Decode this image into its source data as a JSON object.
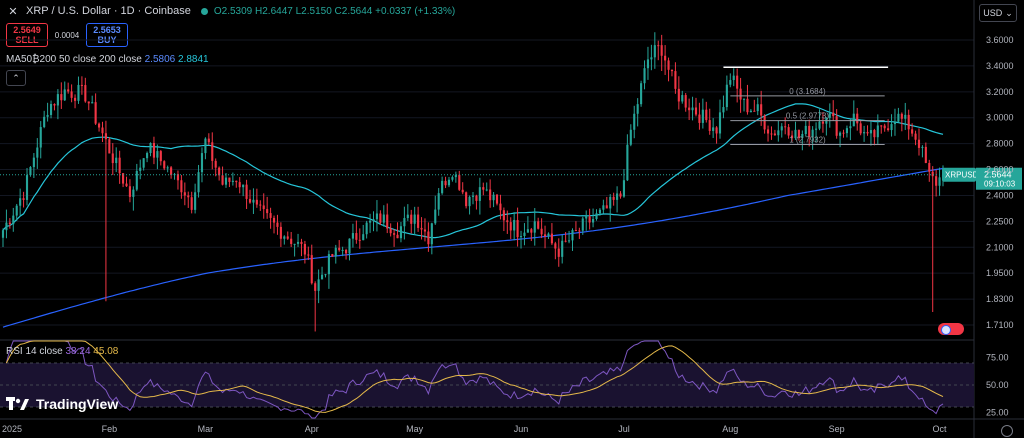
{
  "header": {
    "title": "XRP / U.S. Dollar · 1D · Coinbase",
    "open": "O2.5309",
    "high": "H2.6447",
    "low": "L2.5150",
    "close": "C2.5644",
    "change": "+0.0337 (+1.33%)"
  },
  "trade": {
    "sell_price": "2.5649",
    "sell_label": "SELL",
    "spread": "0.0004",
    "buy_price": "2.5653",
    "buy_label": "BUY"
  },
  "ma_legend": {
    "label": "MA50₿200 50 close 200 close",
    "ma50": "2.5806",
    "ma200": "2.8841"
  },
  "rsi_legend": {
    "label": "RSI 14 close",
    "rsi": "38.24",
    "rsi_ma": "45.08"
  },
  "currency_button": "USD",
  "price_tag": {
    "symbol": "XRPUSD",
    "price": "2.5644",
    "countdown": "09:10:03"
  },
  "fib": {
    "level0": "0 (3.1684)",
    "level05": "0.5 (2.9773)",
    "level1": "1 (2.7932)"
  },
  "brand": "TradingView",
  "colors": {
    "up": "#26a69a",
    "down": "#f23645",
    "ma50": "#2962ff",
    "ma200": "#26c6da",
    "rsi": "#7e57c2",
    "rsi_ma": "#e5b94a"
  },
  "chart_data": {
    "type": "candlestick",
    "price_axis": {
      "ticks": [
        "3.6000",
        "3.4000",
        "3.2000",
        "3.0000",
        "2.8000",
        "2.6000",
        "2.4000",
        "2.2500",
        "2.1000",
        "1.9500",
        "1.8300",
        "1.7100"
      ]
    },
    "rsi_axis": {
      "ticks": [
        "75.00",
        "50.00",
        "25.00"
      ],
      "ylim": [
        20,
        90
      ]
    },
    "time_axis": [
      "2025",
      "Feb",
      "Mar",
      "Apr",
      "May",
      "Jun",
      "Jul",
      "Aug",
      "Sep",
      "Oct"
    ],
    "anchors": [
      {
        "day": 0,
        "price": 2.2
      },
      {
        "day": 6,
        "price": 2.42
      },
      {
        "day": 13,
        "price": 3.08
      },
      {
        "day": 18,
        "price": 3.21
      },
      {
        "day": 24,
        "price": 3.18
      },
      {
        "day": 32,
        "price": 2.69
      },
      {
        "day": 37,
        "price": 2.41
      },
      {
        "day": 42,
        "price": 2.78
      },
      {
        "day": 47,
        "price": 2.64
      },
      {
        "day": 55,
        "price": 2.36
      },
      {
        "day": 59,
        "price": 2.82
      },
      {
        "day": 64,
        "price": 2.49
      },
      {
        "day": 68,
        "price": 2.53
      },
      {
        "day": 74,
        "price": 2.31
      },
      {
        "day": 82,
        "price": 2.18
      },
      {
        "day": 88,
        "price": 2.08
      },
      {
        "day": 91,
        "price": 1.88
      },
      {
        "day": 96,
        "price": 2.05
      },
      {
        "day": 100,
        "price": 2.1
      },
      {
        "day": 105,
        "price": 2.21
      },
      {
        "day": 110,
        "price": 2.27
      },
      {
        "day": 115,
        "price": 2.2
      },
      {
        "day": 120,
        "price": 2.29
      },
      {
        "day": 124,
        "price": 2.16
      },
      {
        "day": 127,
        "price": 2.44
      },
      {
        "day": 131,
        "price": 2.6
      },
      {
        "day": 135,
        "price": 2.38
      },
      {
        "day": 140,
        "price": 2.45
      },
      {
        "day": 145,
        "price": 2.3
      },
      {
        "day": 150,
        "price": 2.2
      },
      {
        "day": 155,
        "price": 2.24
      },
      {
        "day": 158,
        "price": 2.16
      },
      {
        "day": 162,
        "price": 2.08
      },
      {
        "day": 165,
        "price": 2.14
      },
      {
        "day": 170,
        "price": 2.24
      },
      {
        "day": 175,
        "price": 2.3
      },
      {
        "day": 180,
        "price": 2.4
      },
      {
        "day": 183,
        "price": 2.9
      },
      {
        "day": 188,
        "price": 3.45
      },
      {
        "day": 192,
        "price": 3.55
      },
      {
        "day": 196,
        "price": 3.2
      },
      {
        "day": 200,
        "price": 3.1
      },
      {
        "day": 204,
        "price": 3.0
      },
      {
        "day": 208,
        "price": 2.92
      },
      {
        "day": 212,
        "price": 3.32
      },
      {
        "day": 216,
        "price": 3.1
      },
      {
        "day": 220,
        "price": 3.05
      },
      {
        "day": 224,
        "price": 2.88
      },
      {
        "day": 228,
        "price": 2.95
      },
      {
        "day": 232,
        "price": 2.85
      },
      {
        "day": 236,
        "price": 2.92
      },
      {
        "day": 240,
        "price": 3.05
      },
      {
        "day": 244,
        "price": 2.88
      },
      {
        "day": 248,
        "price": 3.0
      },
      {
        "day": 252,
        "price": 2.83
      },
      {
        "day": 256,
        "price": 2.9
      },
      {
        "day": 260,
        "price": 3.02
      },
      {
        "day": 264,
        "price": 2.94
      },
      {
        "day": 267,
        "price": 2.81
      },
      {
        "day": 270,
        "price": 2.55
      },
      {
        "day": 272,
        "price": 2.5
      },
      {
        "day": 274,
        "price": 2.56
      }
    ],
    "annotation_lines": [
      {
        "price": 3.39,
        "from_day": 210,
        "to_day": 258,
        "color": "#ffffff"
      }
    ]
  }
}
